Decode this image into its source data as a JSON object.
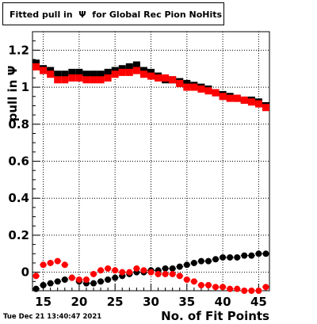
{
  "title": "Fitted pull in  Ψ  for Global Rec Pion NoHits",
  "footer": "Tue Dec 21 13:40:47 2021",
  "chart_data": {
    "type": "scatter",
    "xlabel": "No. of Fit Points",
    "ylabel": "pull in Ψ",
    "xlim": [
      13.5,
      46.5
    ],
    "ylim": [
      -0.1,
      1.3
    ],
    "x_ticks": [
      15,
      20,
      25,
      30,
      35,
      40,
      45
    ],
    "x_tick_labels": [
      "15",
      "20",
      "25",
      "30",
      "35",
      "40",
      "45"
    ],
    "y_ticks": [
      0,
      0.2,
      0.4,
      0.6,
      0.8,
      1.0,
      1.2
    ],
    "y_tick_labels": [
      "0",
      "0.2",
      "0.4",
      "0.6",
      "0.8",
      "1",
      "1.2"
    ],
    "grid": true,
    "x": [
      14,
      15,
      16,
      17,
      18,
      19,
      20,
      21,
      22,
      23,
      24,
      25,
      26,
      27,
      28,
      29,
      30,
      31,
      32,
      33,
      34,
      35,
      36,
      37,
      38,
      39,
      40,
      41,
      42,
      43,
      44,
      45,
      46
    ],
    "series": [
      {
        "color": "#000000",
        "marker": "square",
        "values": [
          1.13,
          1.1,
          1.09,
          1.07,
          1.07,
          1.08,
          1.08,
          1.07,
          1.07,
          1.07,
          1.08,
          1.09,
          1.1,
          1.11,
          1.12,
          1.09,
          1.08,
          1.06,
          1.04,
          1.04,
          1.03,
          1.02,
          1.01,
          1.0,
          0.99,
          0.97,
          0.96,
          0.95,
          0.94,
          0.93,
          0.93,
          0.92,
          0.9
        ]
      },
      {
        "color": "#ff0000",
        "marker": "square",
        "values": [
          1.11,
          1.09,
          1.07,
          1.04,
          1.04,
          1.05,
          1.05,
          1.04,
          1.04,
          1.04,
          1.05,
          1.07,
          1.08,
          1.08,
          1.09,
          1.07,
          1.06,
          1.05,
          1.05,
          1.04,
          1.02,
          1.0,
          1.0,
          0.99,
          0.98,
          0.97,
          0.95,
          0.94,
          0.94,
          0.93,
          0.92,
          0.91,
          0.89
        ]
      },
      {
        "color": "#000000",
        "marker": "circle",
        "values": [
          -0.09,
          -0.07,
          -0.06,
          -0.05,
          -0.04,
          -0.03,
          -0.05,
          -0.06,
          -0.06,
          -0.05,
          -0.04,
          -0.03,
          -0.02,
          -0.01,
          0.0,
          0.0,
          0.01,
          0.01,
          0.02,
          0.02,
          0.03,
          0.04,
          0.05,
          0.06,
          0.06,
          0.07,
          0.08,
          0.08,
          0.08,
          0.09,
          0.09,
          0.1,
          0.1
        ]
      },
      {
        "color": "#ff0000",
        "marker": "circle",
        "values": [
          -0.02,
          0.04,
          0.05,
          0.06,
          0.04,
          -0.03,
          -0.04,
          -0.04,
          -0.01,
          0.01,
          0.02,
          0.01,
          0.0,
          0.0,
          0.02,
          0.01,
          0.0,
          -0.01,
          -0.01,
          -0.01,
          -0.02,
          -0.04,
          -0.05,
          -0.07,
          -0.07,
          -0.08,
          -0.08,
          -0.09,
          -0.09,
          -0.1,
          -0.1,
          -0.1,
          -0.08
        ]
      }
    ]
  }
}
